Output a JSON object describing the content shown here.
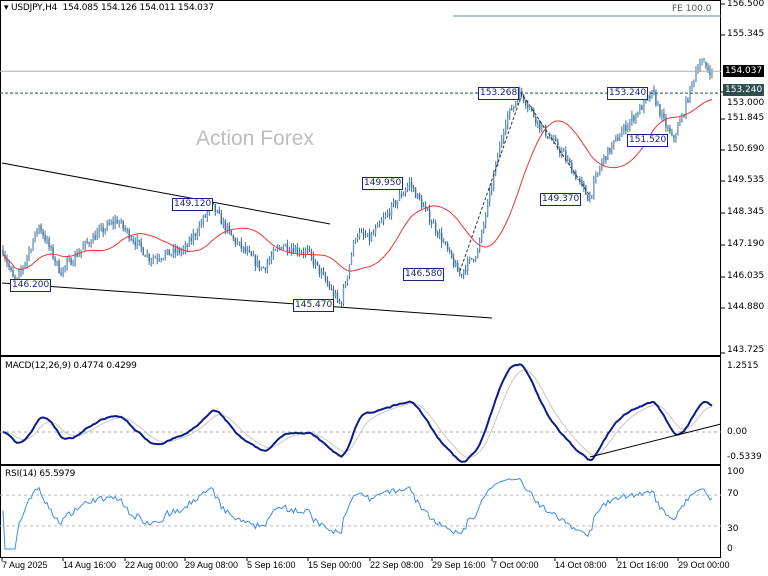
{
  "header": {
    "symbol": "USDJPY,H4",
    "ohlc": "154.085 154.126 154.011 154.037"
  },
  "watermark": "Action Forex",
  "fe_label": "FE 100.0",
  "price_axis": [
    "156.500",
    "155.345",
    "153.000",
    "151.845",
    "150.690",
    "149.535",
    "148.345",
    "147.190",
    "146.035",
    "144.880",
    "143.725"
  ],
  "current_price_tag": "154.037",
  "level_tag": "153.240",
  "pivot_labels": [
    "146.200",
    "149.120",
    "145.470",
    "149.950",
    "146.580",
    "153.268",
    "149.370",
    "153.240",
    "151.520"
  ],
  "macd": {
    "title": "MACD(12,26,9) 0.4774 0.4299",
    "axis": [
      "1.2515",
      "0.00",
      "-0.5339"
    ]
  },
  "rsi": {
    "title": "RSI(14) 65.5979",
    "axis": [
      "100",
      "70",
      "30",
      "0"
    ]
  },
  "time_axis": [
    "7 Aug 2025",
    "14 Aug 16:00",
    "22 Aug 00:00",
    "29 Aug 08:00",
    "5 Sep 16:00",
    "15 Sep 00:00",
    "22 Sep 08:00",
    "29 Sep 16:00",
    "7 Oct 00:00",
    "14 Oct 08:00",
    "21 Oct 16:00",
    "29 Oct 00:00"
  ],
  "colors": {
    "candle": "#3d6f99",
    "ma": "#e53935",
    "macd": "#0d1a8c",
    "signal": "#c8c8c8",
    "rsi": "#3b8fe0",
    "label": "#1a237e"
  },
  "chart_data": {
    "type": "candlestick",
    "symbol": "USDJPY",
    "timeframe": "H4",
    "ylim": [
      143.725,
      156.5
    ],
    "approx_closes": [
      [
        "2025-08-07 00:00",
        147.6
      ],
      [
        "2025-08-08 16:00",
        146.2
      ],
      [
        "2025-08-11 16:00",
        148.4
      ],
      [
        "2025-08-14 08:00",
        146.7
      ],
      [
        "2025-08-18 00:00",
        147.9
      ],
      [
        "2025-08-21 00:00",
        148.6
      ],
      [
        "2025-08-25 00:00",
        147.2
      ],
      [
        "2025-08-29 08:00",
        147.5
      ],
      [
        "2025-09-01 12:00",
        149.12
      ],
      [
        "2025-09-04 00:00",
        147.9
      ],
      [
        "2025-09-08 00:00",
        146.8
      ],
      [
        "2025-09-11 00:00",
        147.7
      ],
      [
        "2025-09-15 00:00",
        147.4
      ],
      [
        "2025-09-18 20:00",
        145.47
      ],
      [
        "2025-09-20 16:00",
        148.1
      ],
      [
        "2025-09-22 08:00",
        147.9
      ],
      [
        "2025-09-27 00:00",
        149.95
      ],
      [
        "2025-09-30 16:00",
        148.0
      ],
      [
        "2025-10-03 00:00",
        146.58
      ],
      [
        "2025-10-05 08:00",
        147.5
      ],
      [
        "2025-10-08 12:00",
        152.2
      ],
      [
        "2025-10-10 08:00",
        153.27
      ],
      [
        "2025-10-12 16:00",
        152.0
      ],
      [
        "2025-10-15 08:00",
        151.0
      ],
      [
        "2025-10-18 08:00",
        149.37
      ],
      [
        "2025-10-20 00:00",
        150.8
      ],
      [
        "2025-10-22 16:00",
        152.0
      ],
      [
        "2025-10-26 00:00",
        153.24
      ],
      [
        "2025-10-27 00:00",
        152.4
      ],
      [
        "2025-10-28 08:00",
        151.52
      ],
      [
        "2025-10-29 08:00",
        152.2
      ],
      [
        "2025-10-31 12:00",
        154.4
      ],
      [
        "2025-11-02 00:00",
        154.037
      ]
    ],
    "levels": {
      "current": 154.037,
      "resistance": 153.24,
      "fe_100": 156.06
    }
  }
}
